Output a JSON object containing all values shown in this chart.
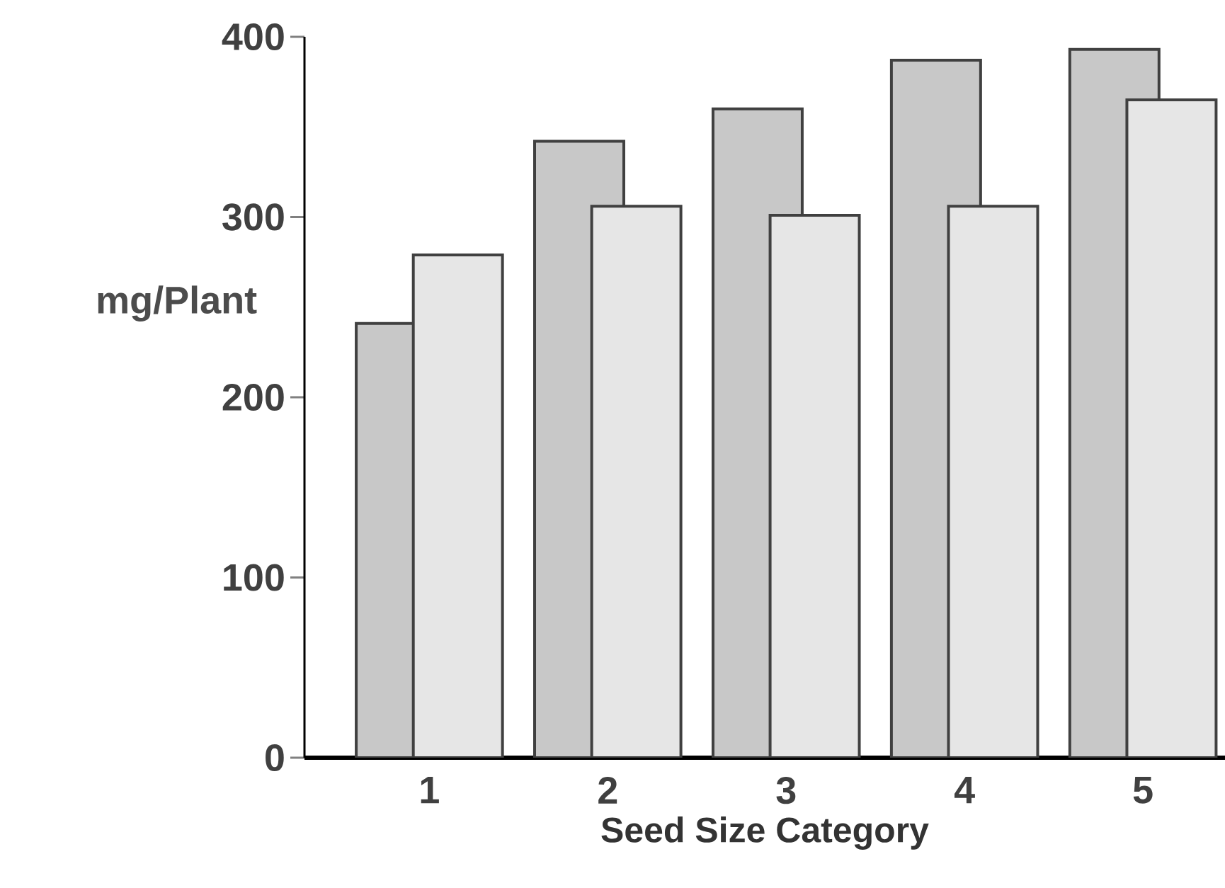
{
  "chart_data": {
    "type": "bar",
    "xlabel": "Seed Size Category",
    "ylabel": "mg/Plant",
    "categories": [
      "1",
      "2",
      "3",
      "4",
      "5"
    ],
    "series": [
      {
        "color": "#c8c8c8",
        "values": [
          241,
          342,
          360,
          387,
          393
        ]
      },
      {
        "color": "#e6e6e6",
        "values": [
          279,
          306,
          301,
          306,
          365
        ]
      }
    ],
    "ylim": [
      0,
      400
    ],
    "yticks": [
      0,
      100,
      200,
      300,
      400
    ]
  }
}
